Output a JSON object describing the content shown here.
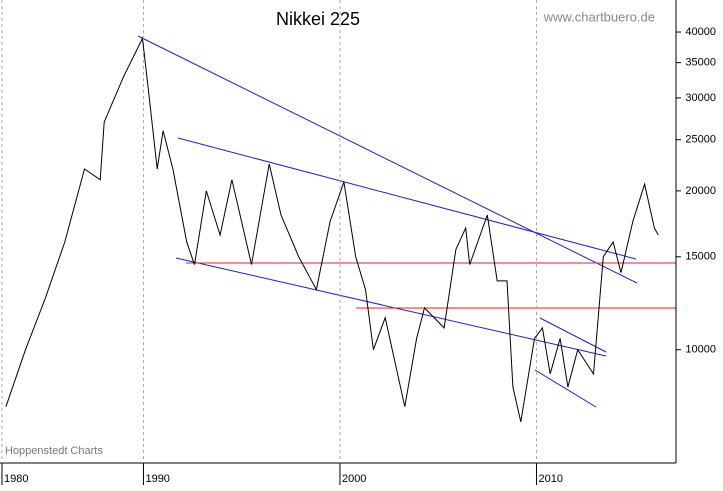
{
  "chart_data": {
    "type": "line",
    "title": "Nikkei 225",
    "source": "www.chartbuero.de",
    "credit": "Hoppenstedt Charts",
    "x": [
      1983.0,
      1984.0,
      1985.0,
      1986.0,
      1987.0,
      1987.8,
      1988.0,
      1989.0,
      1989.95,
      1990.3,
      1990.7,
      1991.0,
      1991.5,
      1992.2,
      1992.6,
      1993.2,
      1993.9,
      1994.5,
      1995.5,
      1996.4,
      1997.0,
      1997.9,
      1998.8,
      1999.5,
      2000.2,
      2000.8,
      2001.3,
      2001.7,
      2002.3,
      2003.3,
      2003.9,
      2004.3,
      2005.3,
      2005.9,
      2006.4,
      2006.6,
      2007.5,
      2008.0,
      2008.5,
      2008.8,
      2009.2,
      2009.9,
      2010.3,
      2010.7,
      2011.2,
      2011.6,
      2012.1,
      2012.9,
      2013.4,
      2013.9,
      2014.3,
      2014.9,
      2015.5,
      2016.0,
      2016.2
    ],
    "series": [
      {
        "name": "Nikkei 225",
        "color": "#000000",
        "values": [
          7800,
          10000,
          12500,
          16000,
          22000,
          21000,
          27000,
          33000,
          38900,
          30000,
          22000,
          26000,
          22000,
          16000,
          14500,
          20000,
          16500,
          21000,
          14500,
          22500,
          18000,
          15000,
          13000,
          17500,
          20800,
          15000,
          13000,
          10000,
          11500,
          7800,
          10500,
          12000,
          11000,
          15500,
          17000,
          14500,
          18000,
          13500,
          13500,
          8500,
          7300,
          10500,
          11000,
          9000,
          10500,
          8500,
          10000,
          9000,
          15000,
          16000,
          14000,
          17500,
          20600,
          17000,
          16500
        ]
      }
    ],
    "xlim": [
      1982.7,
      2017.1
    ],
    "xticks": [
      1980,
      1990,
      2000,
      2010
    ],
    "ylim": [
      6100,
      46000
    ],
    "yticks": [
      10000,
      15000,
      20000,
      25000,
      30000,
      35000,
      40000
    ],
    "log_y": true,
    "grid": true
  }
}
